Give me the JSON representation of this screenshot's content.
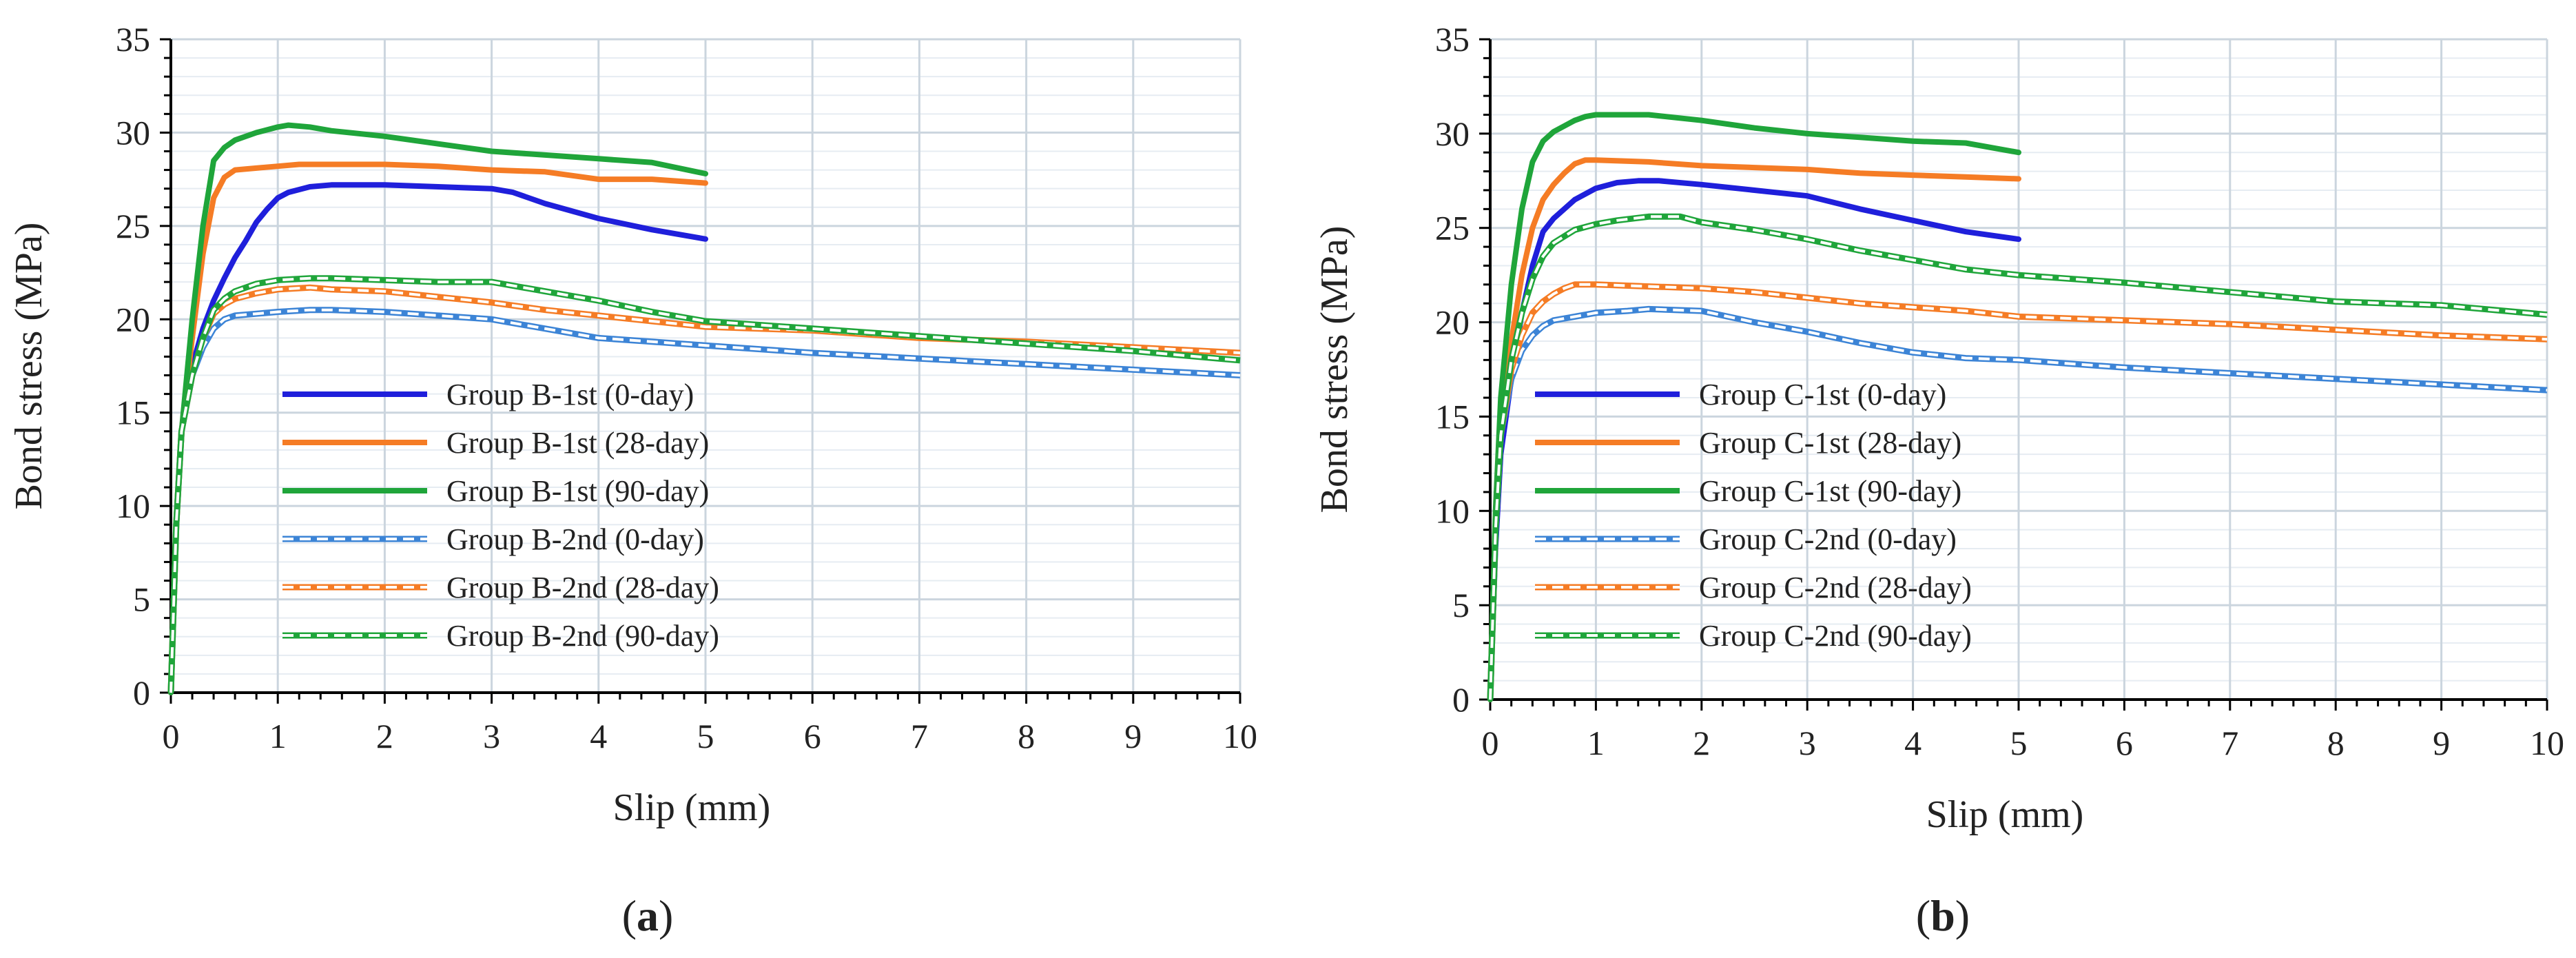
{
  "chart_data": [
    {
      "type": "line",
      "panel_label": "a",
      "xlabel": "Slip (mm)",
      "ylabel": "Bond stress (MPa)",
      "xlim": [
        0,
        10
      ],
      "ylim": [
        0,
        35
      ],
      "xticks": [
        0,
        1,
        2,
        3,
        4,
        5,
        6,
        7,
        8,
        9,
        10
      ],
      "yticks": [
        0,
        5,
        10,
        15,
        20,
        25,
        30,
        35
      ],
      "grid": true,
      "legend_position": "lower-center",
      "series": [
        {
          "name": "Group B-1st (0-day)",
          "color": "#1f1fdb",
          "style": "solid",
          "x": [
            0,
            0.05,
            0.1,
            0.2,
            0.3,
            0.4,
            0.5,
            0.6,
            0.7,
            0.8,
            0.9,
            1.0,
            1.1,
            1.3,
            1.5,
            1.8,
            2.0,
            2.5,
            3.0,
            3.2,
            3.5,
            4.0,
            4.5,
            5.0
          ],
          "y": [
            0,
            9,
            14,
            17.5,
            19.5,
            21,
            22.2,
            23.3,
            24.2,
            25.2,
            25.9,
            26.5,
            26.8,
            27.1,
            27.2,
            27.2,
            27.2,
            27.1,
            27.0,
            26.8,
            26.2,
            25.4,
            24.8,
            24.3
          ]
        },
        {
          "name": "Group B-1st (28-day)",
          "color": "#f57c25",
          "style": "solid",
          "x": [
            0,
            0.05,
            0.1,
            0.2,
            0.3,
            0.4,
            0.5,
            0.6,
            0.8,
            1.0,
            1.2,
            1.5,
            2.0,
            2.5,
            3.0,
            3.5,
            4.0,
            4.5,
            5.0
          ],
          "y": [
            0,
            9,
            14,
            19,
            23.5,
            26.5,
            27.6,
            28.0,
            28.1,
            28.2,
            28.3,
            28.3,
            28.3,
            28.2,
            28.0,
            27.9,
            27.5,
            27.5,
            27.3
          ]
        },
        {
          "name": "Group B-1st (90-day)",
          "color": "#1fa53a",
          "style": "solid",
          "x": [
            0,
            0.05,
            0.1,
            0.2,
            0.3,
            0.4,
            0.5,
            0.6,
            0.8,
            1.0,
            1.1,
            1.3,
            1.5,
            2.0,
            2.5,
            3.0,
            3.5,
            4.0,
            4.5,
            5.0
          ],
          "y": [
            0,
            9,
            14,
            20,
            25,
            28.5,
            29.2,
            29.6,
            30.0,
            30.3,
            30.4,
            30.3,
            30.1,
            29.8,
            29.4,
            29.0,
            28.8,
            28.6,
            28.4,
            27.8
          ]
        },
        {
          "name": "Group B-2nd (0-day)",
          "color": "#3c84d6",
          "style": "dashed",
          "x": [
            0,
            0.05,
            0.1,
            0.2,
            0.3,
            0.4,
            0.5,
            0.6,
            0.8,
            1.0,
            1.3,
            1.5,
            2.0,
            2.5,
            3.0,
            3.5,
            4.0,
            4.5,
            5.0,
            6.0,
            7.0,
            8.0,
            9.0,
            10.0
          ],
          "y": [
            0,
            9,
            14,
            17,
            18.5,
            19.5,
            20.0,
            20.2,
            20.3,
            20.4,
            20.5,
            20.5,
            20.4,
            20.2,
            20.0,
            19.5,
            19.0,
            18.8,
            18.6,
            18.2,
            17.9,
            17.6,
            17.3,
            17.0
          ]
        },
        {
          "name": "Group B-2nd (28-day)",
          "color": "#f57c25",
          "style": "dashed",
          "x": [
            0,
            0.05,
            0.1,
            0.2,
            0.3,
            0.4,
            0.5,
            0.6,
            0.8,
            1.0,
            1.3,
            1.5,
            2.0,
            2.5,
            3.0,
            3.5,
            4.0,
            4.5,
            5.0,
            6.0,
            7.0,
            8.0,
            9.0,
            10.0
          ],
          "y": [
            0,
            9,
            14,
            17,
            19,
            20.3,
            20.8,
            21.1,
            21.4,
            21.6,
            21.7,
            21.6,
            21.5,
            21.2,
            20.9,
            20.5,
            20.2,
            19.9,
            19.6,
            19.4,
            19.0,
            18.8,
            18.5,
            18.2
          ]
        },
        {
          "name": "Group B-2nd (90-day)",
          "color": "#1fa53a",
          "style": "dashed",
          "x": [
            0,
            0.05,
            0.1,
            0.2,
            0.3,
            0.4,
            0.5,
            0.6,
            0.8,
            1.0,
            1.3,
            1.5,
            2.0,
            2.5,
            3.0,
            3.5,
            4.0,
            4.5,
            5.0,
            6.0,
            7.0,
            8.0,
            9.0,
            10.0
          ],
          "y": [
            0,
            9,
            14,
            17,
            19,
            20.5,
            21.1,
            21.5,
            21.9,
            22.1,
            22.2,
            22.2,
            22.1,
            22.0,
            22.0,
            21.5,
            21.0,
            20.4,
            19.9,
            19.5,
            19.1,
            18.7,
            18.3,
            17.8
          ]
        }
      ]
    },
    {
      "type": "line",
      "panel_label": "b",
      "xlabel": "Slip (mm)",
      "ylabel": "Bond stress (MPa)",
      "xlim": [
        0,
        10
      ],
      "ylim": [
        0,
        35
      ],
      "xticks": [
        0,
        1,
        2,
        3,
        4,
        5,
        6,
        7,
        8,
        9,
        10
      ],
      "yticks": [
        0,
        5,
        10,
        15,
        20,
        25,
        30,
        35
      ],
      "grid": true,
      "legend_position": "lower-center",
      "series": [
        {
          "name": "Group C-1st (0-day)",
          "color": "#1f1fdb",
          "style": "solid",
          "x": [
            0,
            0.05,
            0.1,
            0.2,
            0.3,
            0.4,
            0.5,
            0.6,
            0.8,
            1.0,
            1.2,
            1.4,
            1.6,
            2.0,
            2.5,
            3.0,
            3.5,
            4.0,
            4.5,
            5.0
          ],
          "y": [
            0,
            8,
            13,
            17,
            20.5,
            23,
            24.8,
            25.5,
            26.5,
            27.1,
            27.4,
            27.5,
            27.5,
            27.3,
            27.0,
            26.7,
            26.0,
            25.4,
            24.8,
            24.4
          ]
        },
        {
          "name": "Group C-1st (28-day)",
          "color": "#f57c25",
          "style": "solid",
          "x": [
            0,
            0.05,
            0.1,
            0.2,
            0.3,
            0.4,
            0.5,
            0.6,
            0.7,
            0.8,
            0.9,
            1.0,
            1.5,
            2.0,
            2.5,
            3.0,
            3.5,
            4.0,
            4.5,
            5.0
          ],
          "y": [
            0,
            9,
            14,
            19,
            22.5,
            25,
            26.5,
            27.3,
            27.9,
            28.4,
            28.6,
            28.6,
            28.5,
            28.3,
            28.2,
            28.1,
            27.9,
            27.8,
            27.7,
            27.6
          ]
        },
        {
          "name": "Group C-1st (90-day)",
          "color": "#1fa53a",
          "style": "solid",
          "x": [
            0,
            0.05,
            0.1,
            0.2,
            0.3,
            0.4,
            0.5,
            0.6,
            0.7,
            0.8,
            0.9,
            1.0,
            1.2,
            1.5,
            2.0,
            2.5,
            3.0,
            3.5,
            4.0,
            4.5,
            5.0
          ],
          "y": [
            0,
            10,
            16,
            22,
            26,
            28.5,
            29.6,
            30.1,
            30.4,
            30.7,
            30.9,
            31.0,
            31.0,
            31.0,
            30.7,
            30.3,
            30.0,
            29.8,
            29.6,
            29.5,
            29.0
          ]
        },
        {
          "name": "Group C-2nd (0-day)",
          "color": "#3c84d6",
          "style": "dashed",
          "x": [
            0,
            0.05,
            0.1,
            0.2,
            0.3,
            0.4,
            0.5,
            0.6,
            0.8,
            1.0,
            1.3,
            1.5,
            2.0,
            2.5,
            3.0,
            3.5,
            4.0,
            4.5,
            5.0,
            6.0,
            7.0,
            8.0,
            9.0,
            10.0
          ],
          "y": [
            0,
            9,
            14,
            17,
            18.5,
            19.3,
            19.8,
            20.1,
            20.3,
            20.5,
            20.6,
            20.7,
            20.6,
            20.0,
            19.5,
            18.9,
            18.4,
            18.1,
            18.0,
            17.6,
            17.3,
            17.0,
            16.7,
            16.4
          ]
        },
        {
          "name": "Group C-2nd (28-day)",
          "color": "#f57c25",
          "style": "dashed",
          "x": [
            0,
            0.05,
            0.1,
            0.2,
            0.3,
            0.4,
            0.5,
            0.6,
            0.7,
            0.8,
            0.9,
            1.0,
            1.5,
            2.0,
            2.5,
            3.0,
            3.5,
            4.0,
            4.5,
            5.0,
            6.0,
            7.0,
            8.0,
            9.0,
            10.0
          ],
          "y": [
            0,
            9,
            14,
            17.5,
            19.3,
            20.5,
            21.1,
            21.5,
            21.8,
            22.0,
            22.0,
            22.0,
            21.9,
            21.8,
            21.6,
            21.3,
            21.0,
            20.8,
            20.6,
            20.3,
            20.1,
            19.9,
            19.6,
            19.3,
            19.1
          ]
        },
        {
          "name": "Group C-2nd (90-day)",
          "color": "#1fa53a",
          "style": "dashed",
          "x": [
            0,
            0.05,
            0.1,
            0.2,
            0.3,
            0.4,
            0.5,
            0.6,
            0.8,
            1.0,
            1.2,
            1.5,
            1.8,
            2.0,
            2.5,
            3.0,
            3.5,
            4.0,
            4.5,
            5.0,
            6.0,
            7.0,
            8.0,
            9.0,
            10.0
          ],
          "y": [
            0,
            9,
            14,
            18,
            20.5,
            22.3,
            23.5,
            24.2,
            24.9,
            25.2,
            25.4,
            25.6,
            25.6,
            25.3,
            24.9,
            24.4,
            23.8,
            23.3,
            22.8,
            22.5,
            22.1,
            21.6,
            21.1,
            20.9,
            20.4
          ]
        }
      ]
    }
  ]
}
